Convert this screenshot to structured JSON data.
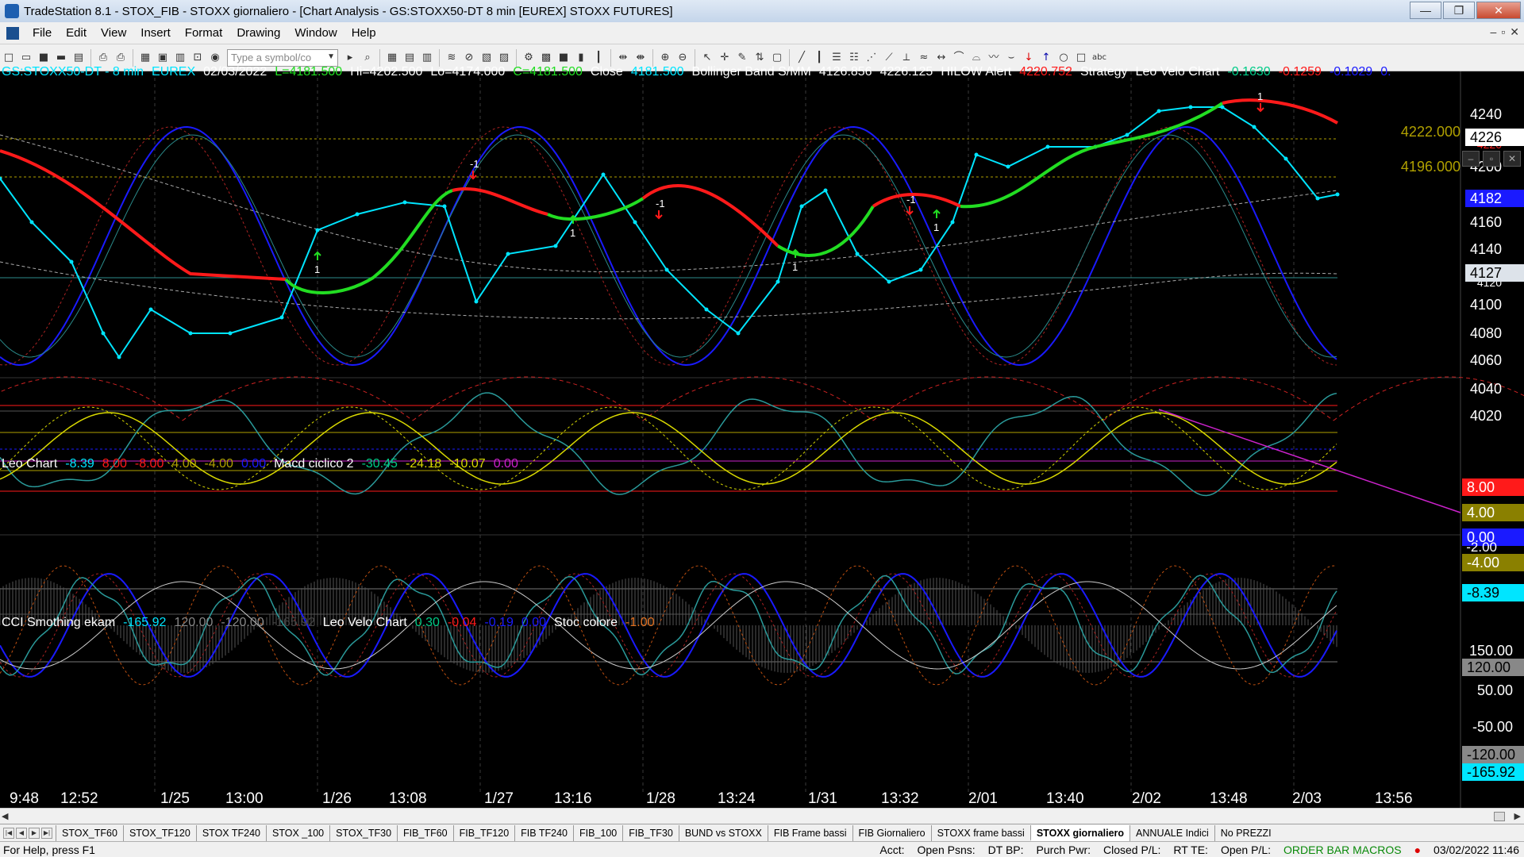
{
  "window": {
    "title": "TradeStation 8.1 - STOX_FIB - STOXX giornaliero - [Chart Analysis - GS:STOXX50-DT  8 min  [EUREX] STOXX FUTURES]",
    "minimize": "—",
    "restore": "❐",
    "close": "✕"
  },
  "menu": {
    "items": [
      "File",
      "Edit",
      "View",
      "Insert",
      "Format",
      "Drawing",
      "Window",
      "Help"
    ],
    "mdi": {
      "minimize": "–",
      "restore": "▫",
      "close": "✕"
    }
  },
  "toolbar": {
    "symbol_placeholder": "Type a symbol/co"
  },
  "price_panel": {
    "symbol": "GS:STOXX50-DT - 8 min",
    "exchange": "EUREX",
    "date": "02/03/2022",
    "last": "L=4181.500",
    "high": "Hi=4202.500",
    "low": "Lo=4174.000",
    "close_eq": "C=4181.500",
    "close_label": "Close",
    "close_value": "4181.500",
    "bb_label": "Bollinger Band S/MM",
    "bb_upper": "4126.856",
    "bb_lower": "4226.125",
    "hilow_label": "HILOW Alert",
    "hilow_value": "4220.752",
    "strategy_label": "Strategy",
    "leo_velo_label": "Leo Velo Chart",
    "leo_v1": "-0.1630",
    "leo_v2": "-0.1259",
    "leo_v3": "-0.1029",
    "leo_v4": "0.",
    "axis": [
      "4240",
      "4200",
      "4160",
      "4140",
      "4100",
      "4080",
      "4060",
      "4040",
      "4020"
    ],
    "axis_4220": "4220",
    "axis_4120": "4120",
    "tag_current": "4182",
    "tag_4226": "4226",
    "tag_4127": "4127",
    "level_high": "4222.000",
    "level_low": "4196.000"
  },
  "leo_panel": {
    "label": "Leo Chart",
    "v1": "-8.39",
    "v2": "8.00",
    "v3": "-8.00",
    "v4": "4.00",
    "v5": "-4.00",
    "v6": "0.00",
    "macd_label": "Macd ciclico 2",
    "m1": "-30.45",
    "m2": "-24.18",
    "m3": "-10.07",
    "m4": "0.00",
    "tag_8": "8.00",
    "tag_4": "4.00",
    "tag_0": "0.00",
    "tag_m2": "-2.00",
    "tag_m4": "-4.00",
    "tag_cur": "-8.39"
  },
  "cci_panel": {
    "label": "CCI Smothing ekam",
    "v1": "-165.92",
    "v2": "120.00",
    "v3": "-120.00",
    "v4": "-165.92",
    "leo_label": "Leo Velo Chart",
    "l1": "0.30",
    "l2": "-0.04",
    "l3": "-0.19",
    "l4": "0.00",
    "stoc_label": "Stoc colore",
    "stoc_v": "-1.00",
    "axis_150": "150.00",
    "tag_120": "120.00",
    "axis_50": "50.00",
    "axis_m50": "-50.00",
    "tag_m120": "-120.00",
    "tag_cur": "-165.92"
  },
  "time_axis": [
    "9:48",
    "12:52",
    "1/25",
    "13:00",
    "1/26",
    "13:08",
    "1/27",
    "13:16",
    "1/28",
    "13:24",
    "1/31",
    "13:32",
    "2/01",
    "13:40",
    "2/02",
    "13:48",
    "2/03",
    "13:56"
  ],
  "tabs": [
    "STOX_TF60",
    "STOX_TF120",
    "STOX TF240",
    "STOX _100",
    "STOX_TF30",
    "FIB_TF60",
    "FIB_TF120",
    "FIB TF240",
    "FIB_100",
    "FIB_TF30",
    "BUND vs STOXX",
    "FIB Frame bassi",
    "FIB Giornaliero",
    "STOXX frame bassi",
    "STOXX giornaliero",
    "ANNUALE Indici",
    "No PREZZI"
  ],
  "active_tab": "STOXX giornaliero",
  "status": {
    "help": "For Help, press F1",
    "acct": "Acct:",
    "open_psns": "Open Psns:",
    "dt_bp": "DT BP:",
    "purch_pwr": "Purch Pwr:",
    "closed_pl": "Closed P/L:",
    "rt_te": "RT TE:",
    "open_pl": "Open P/L:",
    "orderbar": "ORDER BAR MACROS",
    "datetime": "03/02/2022 11:46"
  },
  "signals": [
    "-1",
    "1",
    "1",
    "-1",
    "1",
    "-1",
    "1",
    "1",
    "-1"
  ],
  "colors": {
    "cyan": "#00e5ff",
    "red": "#ff1a1a",
    "green": "#22dd22",
    "yellow": "#d8d800",
    "blue": "#1a1aff",
    "magenta": "#cc22cc",
    "olive": "#b0a000"
  }
}
